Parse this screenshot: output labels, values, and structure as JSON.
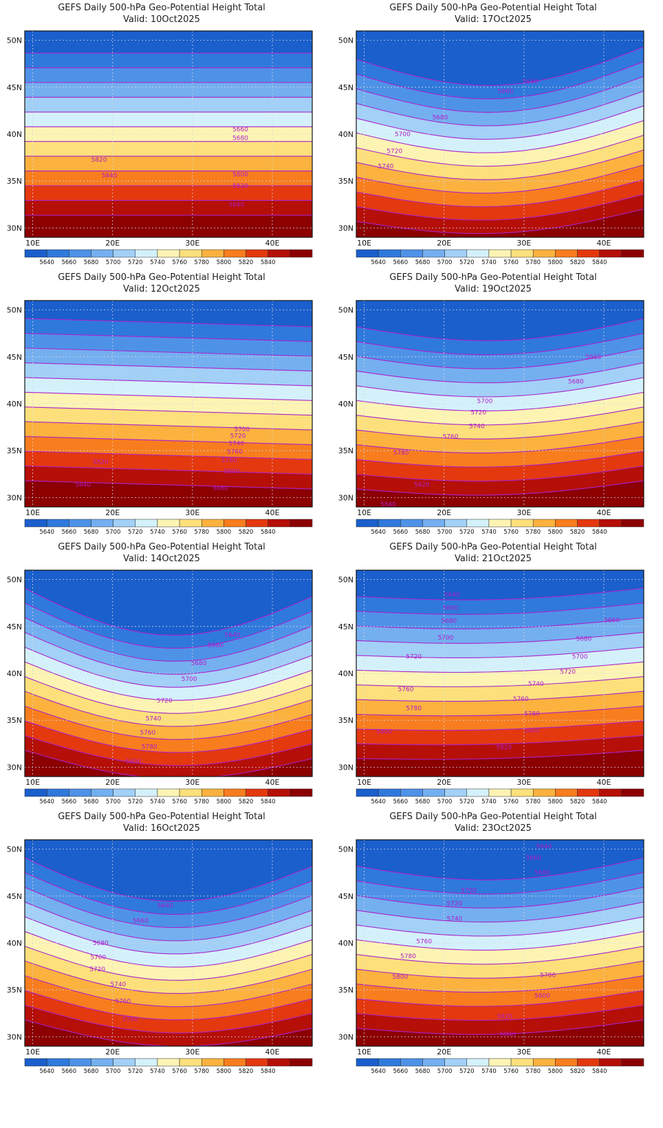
{
  "title_line1": "GEFS Daily 500-hPa Geo-Potential Height Total",
  "valid_prefix": "Valid:",
  "lat_ticks": [
    "50N",
    "45N",
    "40N",
    "35N",
    "30N"
  ],
  "lon_ticks": [
    "10E",
    "20E",
    "30E",
    "40E"
  ],
  "colorbar_labels": [
    "5640",
    "5660",
    "5680",
    "5700",
    "5720",
    "5740",
    "5760",
    "5780",
    "5800",
    "5820",
    "5840"
  ],
  "colors": [
    "#1a5fcc",
    "#2f79dc",
    "#4e92e8",
    "#74aff0",
    "#a2d0f7",
    "#d4f1fb",
    "#fdf4b4",
    "#fde07c",
    "#fbb23f",
    "#f87d1e",
    "#e4380f",
    "#b50f07",
    "#8c0000"
  ],
  "contour_color": "#aa22cc",
  "panels": [
    {
      "id": "p1",
      "valid": "10Oct2025",
      "col": 0,
      "row": 0,
      "labels": [
        {
          "t": "5660",
          "x": 36,
          "y": 40.5
        },
        {
          "t": "5680",
          "x": 36,
          "y": 39.6
        },
        {
          "t": "5820",
          "x": 18.3,
          "y": 37.3
        },
        {
          "t": "5840",
          "x": 19.6,
          "y": 35.6
        },
        {
          "t": "5800",
          "x": 36,
          "y": 35.7
        },
        {
          "t": "5820",
          "x": 36,
          "y": 34.5
        },
        {
          "t": "5840",
          "x": 35.5,
          "y": 32.5
        }
      ]
    },
    {
      "id": "p2",
      "valid": "17Oct2025",
      "col": 1,
      "row": 0,
      "labels": [
        {
          "t": "5640",
          "x": 30.8,
          "y": 45.6
        },
        {
          "t": "5660",
          "x": 27.7,
          "y": 44.6
        },
        {
          "t": "5680",
          "x": 19.5,
          "y": 41.8
        },
        {
          "t": "5700",
          "x": 14.8,
          "y": 40.0
        },
        {
          "t": "5720",
          "x": 13.8,
          "y": 38.2
        },
        {
          "t": "5740",
          "x": 12.7,
          "y": 36.6
        }
      ]
    },
    {
      "id": "p3",
      "valid": "12Oct2025",
      "col": 0,
      "row": 1,
      "labels": [
        {
          "t": "5700",
          "x": 36.2,
          "y": 37.3
        },
        {
          "t": "5720",
          "x": 35.7,
          "y": 36.6
        },
        {
          "t": "5740",
          "x": 35.5,
          "y": 35.8
        },
        {
          "t": "5760",
          "x": 35.3,
          "y": 34.9
        },
        {
          "t": "5780",
          "x": 34.6,
          "y": 34.0
        },
        {
          "t": "5800",
          "x": 34.9,
          "y": 32.8
        },
        {
          "t": "5820",
          "x": 18.5,
          "y": 33.8
        },
        {
          "t": "5840",
          "x": 16.3,
          "y": 31.4
        },
        {
          "t": "5860",
          "x": 33.5,
          "y": 31.0
        }
      ]
    },
    {
      "id": "p4",
      "valid": "19Oct2025",
      "col": 1,
      "row": 1,
      "labels": [
        {
          "t": "5660",
          "x": 38.7,
          "y": 45.0
        },
        {
          "t": "5680",
          "x": 36.5,
          "y": 42.4
        },
        {
          "t": "5700",
          "x": 25.1,
          "y": 40.3
        },
        {
          "t": "5720",
          "x": 24.3,
          "y": 39.1
        },
        {
          "t": "5740",
          "x": 24.1,
          "y": 37.6
        },
        {
          "t": "5760",
          "x": 20.8,
          "y": 36.5
        },
        {
          "t": "5780",
          "x": 14.6,
          "y": 34.8
        },
        {
          "t": "5820",
          "x": 17.2,
          "y": 31.4
        },
        {
          "t": "5840",
          "x": 13.0,
          "y": 29.3
        }
      ]
    },
    {
      "id": "p5",
      "valid": "14Oct2025",
      "col": 0,
      "row": 2,
      "labels": [
        {
          "t": "5640",
          "x": 35.0,
          "y": 44.1
        },
        {
          "t": "5660",
          "x": 32.9,
          "y": 43.0
        },
        {
          "t": "5680",
          "x": 30.8,
          "y": 41.1
        },
        {
          "t": "5700",
          "x": 29.6,
          "y": 39.4
        },
        {
          "t": "5720",
          "x": 26.5,
          "y": 37.1
        },
        {
          "t": "5740",
          "x": 25.1,
          "y": 35.2
        },
        {
          "t": "5760",
          "x": 24.4,
          "y": 33.7
        },
        {
          "t": "5780",
          "x": 24.6,
          "y": 32.2
        },
        {
          "t": "5800",
          "x": 22.6,
          "y": 30.6
        }
      ]
    },
    {
      "id": "p6",
      "valid": "21Oct2025",
      "col": 1,
      "row": 2,
      "labels": [
        {
          "t": "5640",
          "x": 21.0,
          "y": 48.4
        },
        {
          "t": "5660",
          "x": 20.8,
          "y": 47.0
        },
        {
          "t": "5680",
          "x": 20.6,
          "y": 45.6
        },
        {
          "t": "5700",
          "x": 20.2,
          "y": 43.8
        },
        {
          "t": "5660",
          "x": 41.0,
          "y": 45.7
        },
        {
          "t": "5680",
          "x": 37.5,
          "y": 43.7
        },
        {
          "t": "5700",
          "x": 37.0,
          "y": 41.8
        },
        {
          "t": "5720",
          "x": 16.2,
          "y": 41.8
        },
        {
          "t": "5720",
          "x": 35.5,
          "y": 40.2
        },
        {
          "t": "5740",
          "x": 31.5,
          "y": 38.9
        },
        {
          "t": "5760",
          "x": 15.2,
          "y": 38.3
        },
        {
          "t": "5760",
          "x": 29.6,
          "y": 37.3
        },
        {
          "t": "5780",
          "x": 16.2,
          "y": 36.3
        },
        {
          "t": "5780",
          "x": 31.0,
          "y": 35.7
        },
        {
          "t": "5800",
          "x": 12.5,
          "y": 33.8
        },
        {
          "t": "5800",
          "x": 31.0,
          "y": 33.9
        },
        {
          "t": "5820",
          "x": 27.5,
          "y": 32.1
        }
      ]
    },
    {
      "id": "p7",
      "valid": "16Oct2025",
      "col": 0,
      "row": 3,
      "labels": [
        {
          "t": "5640",
          "x": 26.6,
          "y": 44.0
        },
        {
          "t": "5660",
          "x": 23.5,
          "y": 42.4
        },
        {
          "t": "5680",
          "x": 18.5,
          "y": 40.0
        },
        {
          "t": "5700",
          "x": 18.2,
          "y": 38.5
        },
        {
          "t": "5720",
          "x": 18.1,
          "y": 37.2
        },
        {
          "t": "5740",
          "x": 20.7,
          "y": 35.6
        },
        {
          "t": "5760",
          "x": 21.3,
          "y": 33.8
        },
        {
          "t": "5780",
          "x": 22.2,
          "y": 31.9
        }
      ]
    },
    {
      "id": "p8",
      "valid": "23Oct2025",
      "col": 1,
      "row": 3,
      "labels": [
        {
          "t": "5640",
          "x": 32.5,
          "y": 50.3
        },
        {
          "t": "5660",
          "x": 31.2,
          "y": 49.1
        },
        {
          "t": "5680",
          "x": 32.3,
          "y": 47.5
        },
        {
          "t": "5700",
          "x": 23.1,
          "y": 45.6
        },
        {
          "t": "5720",
          "x": 21.3,
          "y": 44.2
        },
        {
          "t": "5740",
          "x": 21.3,
          "y": 42.6
        },
        {
          "t": "5760",
          "x": 17.5,
          "y": 40.2
        },
        {
          "t": "5780",
          "x": 15.5,
          "y": 38.6
        },
        {
          "t": "5780",
          "x": 33.0,
          "y": 36.6
        },
        {
          "t": "5800",
          "x": 14.5,
          "y": 36.4
        },
        {
          "t": "5800",
          "x": 32.3,
          "y": 34.4
        },
        {
          "t": "5820",
          "x": 27.6,
          "y": 32.2
        },
        {
          "t": "5840",
          "x": 28.0,
          "y": 30.3
        }
      ]
    }
  ]
}
